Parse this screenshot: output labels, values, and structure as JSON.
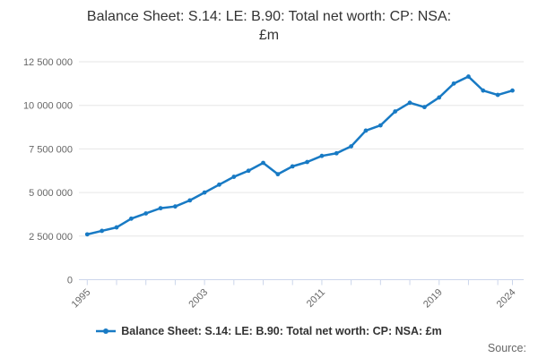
{
  "title": {
    "line1": "Balance Sheet: S.14: LE: B.90: Total net worth: CP: NSA:",
    "line2": "£m"
  },
  "legend": {
    "label": "Balance Sheet: S.14: LE: B.90: Total net worth: CP: NSA: £m"
  },
  "source": {
    "label": "Source:"
  },
  "colors": {
    "series": "#187ac4",
    "grid": "#e6e6e6",
    "axis": "#ccd6eb",
    "tick_label": "#666666",
    "title_text": "#333333"
  },
  "chart_data": {
    "type": "line",
    "title": "Balance Sheet: S.14: LE: B.90: Total net worth: CP: NSA: £m",
    "xlabel": "",
    "ylabel": "",
    "x": [
      1995,
      1996,
      1997,
      1998,
      1999,
      2000,
      2001,
      2002,
      2003,
      2004,
      2005,
      2006,
      2007,
      2008,
      2009,
      2010,
      2011,
      2012,
      2013,
      2014,
      2015,
      2016,
      2017,
      2018,
      2019,
      2020,
      2021,
      2022,
      2023,
      2024
    ],
    "values": [
      2600000,
      2800000,
      3000000,
      3500000,
      3800000,
      4100000,
      4200000,
      4550000,
      5000000,
      5450000,
      5900000,
      6250000,
      6700000,
      6050000,
      6500000,
      6750000,
      7100000,
      7250000,
      7650000,
      8550000,
      8850000,
      9650000,
      10150000,
      9900000,
      10450000,
      11250000,
      11650000,
      10850000,
      10600000,
      10850000
    ],
    "ylim": [
      0,
      12500000
    ],
    "yticks": [
      0,
      2500000,
      5000000,
      7500000,
      10000000,
      12500000
    ],
    "ytick_labels": [
      "0",
      "2 500 000",
      "5 000 000",
      "7 500 000",
      "10 000 000",
      "12 500 000"
    ],
    "xticks": [
      1995,
      1997,
      1999,
      2001,
      2003,
      2005,
      2007,
      2009,
      2011,
      2013,
      2015,
      2017,
      2019,
      2021,
      2023,
      2024
    ],
    "xtick_labels": [
      "1995",
      "2003",
      "2011",
      "2019",
      "2024"
    ],
    "xtick_label_years": [
      1995,
      2003,
      2011,
      2019,
      2024
    ],
    "grid": "horizontal",
    "legend_position": "bottom",
    "legend_entries": [
      "Balance Sheet: S.14: LE: B.90: Total net worth: CP: NSA: £m"
    ],
    "annotations": [
      "Source:"
    ]
  }
}
